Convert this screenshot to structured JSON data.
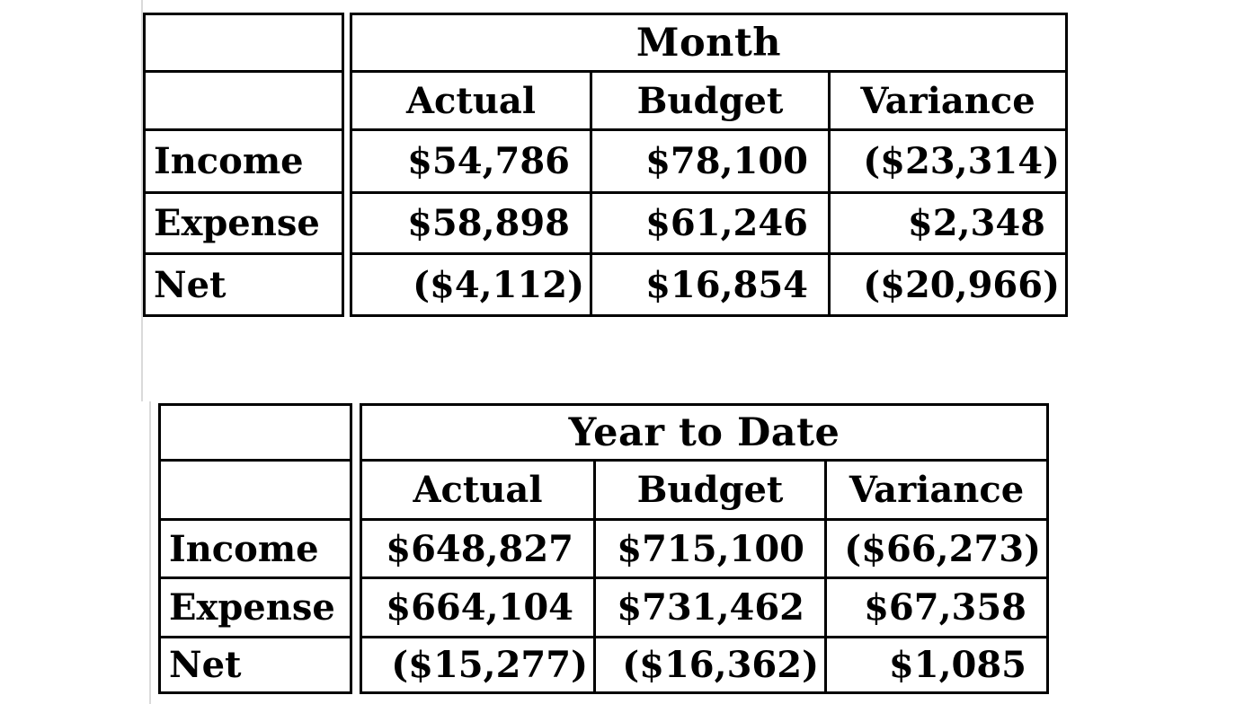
{
  "colors": {
    "border": "#000000",
    "text": "#000000",
    "background": "#ffffff",
    "faint_gridline": "#dadada"
  },
  "tables": [
    {
      "title": "Month",
      "col_headers": [
        "Actual",
        "Budget",
        "Variance"
      ],
      "rows": [
        {
          "label": "Income",
          "values": [
            "$54,786",
            "$78,100",
            "($23,314)"
          ]
        },
        {
          "label": "Expense",
          "values": [
            "$58,898",
            "$61,246",
            "$2,348"
          ]
        },
        {
          "label": "Net",
          "values": [
            "($4,112)",
            "$16,854",
            "($20,966)"
          ]
        }
      ]
    },
    {
      "title": "Year to Date",
      "col_headers": [
        "Actual",
        "Budget",
        "Variance"
      ],
      "rows": [
        {
          "label": "Income",
          "values": [
            "$648,827",
            "$715,100",
            "($66,273)"
          ]
        },
        {
          "label": "Expense",
          "values": [
            "$664,104",
            "$731,462",
            "$67,358"
          ]
        },
        {
          "label": "Net",
          "values": [
            "($15,277)",
            "($16,362)",
            "$1,085"
          ]
        }
      ]
    }
  ]
}
